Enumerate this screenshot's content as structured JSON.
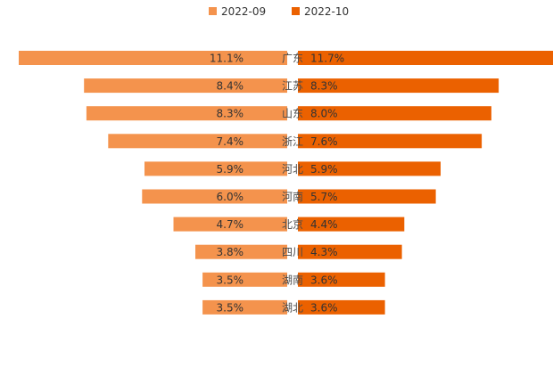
{
  "chart_data": {
    "type": "bar",
    "orientation": "horizontal-mirrored",
    "categories": [
      "广东",
      "江苏",
      "山东",
      "浙江",
      "河北",
      "河南",
      "北京",
      "四川",
      "湖南",
      "湖北"
    ],
    "series": [
      {
        "name": "2022-09",
        "color": "#F4934D",
        "direction": "left",
        "values": [
          11.1,
          8.4,
          8.3,
          7.4,
          5.9,
          6.0,
          4.7,
          3.8,
          3.5,
          3.5
        ],
        "labels": [
          "11.1%",
          "8.4%",
          "8.3%",
          "7.4%",
          "5.9%",
          "6.0%",
          "4.7%",
          "3.8%",
          "3.5%",
          "3.5%"
        ]
      },
      {
        "name": "2022-10",
        "color": "#EB6100",
        "direction": "right",
        "values": [
          11.7,
          8.3,
          8.0,
          7.6,
          5.9,
          5.7,
          4.4,
          4.3,
          3.6,
          3.6
        ],
        "labels": [
          "11.7%",
          "8.3%",
          "8.0%",
          "7.6%",
          "5.9%",
          "5.7%",
          "4.4%",
          "4.3%",
          "3.6%",
          "3.6%"
        ]
      }
    ],
    "value_unit": "%",
    "legend_position": "top-center",
    "grid": false
  }
}
